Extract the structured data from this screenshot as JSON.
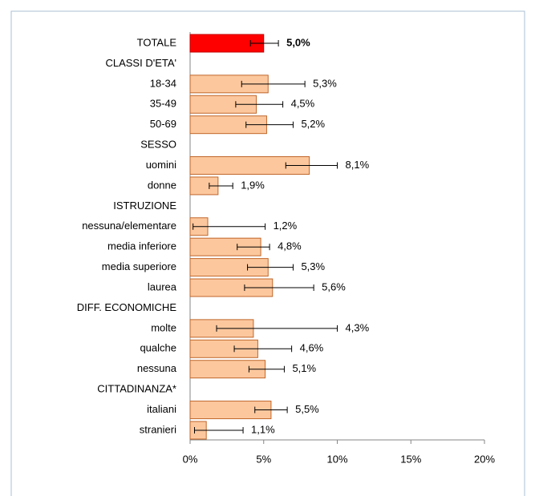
{
  "chart_data": {
    "type": "bar",
    "orientation": "horizontal",
    "categories": [
      "TOTALE",
      "CLASSI D'ETA'",
      "18-34",
      "35-49",
      "50-69",
      "SESSO",
      "uomini",
      "donne",
      "ISTRUZIONE",
      "nessuna/elementare",
      "media inferiore",
      "media superiore",
      "laurea",
      "DIFF. ECONOMICHE",
      "molte",
      "qualche",
      "nessuna",
      "CITTADINANZA*",
      "italiani",
      "stranieri"
    ],
    "values": [
      5.0,
      null,
      5.3,
      4.5,
      5.2,
      null,
      8.1,
      1.9,
      null,
      1.2,
      4.8,
      5.3,
      5.6,
      null,
      4.3,
      4.6,
      5.1,
      null,
      5.5,
      1.1
    ],
    "value_labels": [
      "5,0%",
      null,
      "5,3%",
      "4,5%",
      "5,2%",
      null,
      "8,1%",
      "1,9%",
      null,
      "1,2%",
      "4,8%",
      "5,3%",
      "5,6%",
      null,
      "4,3%",
      "4,6%",
      "5,1%",
      null,
      "5,5%",
      "1,1%"
    ],
    "errors_low": [
      4.1,
      null,
      3.5,
      3.1,
      3.8,
      null,
      6.5,
      1.3,
      null,
      0.2,
      3.2,
      3.9,
      3.7,
      null,
      1.8,
      3.0,
      4.0,
      null,
      4.4,
      0.3
    ],
    "errors_high": [
      6.0,
      null,
      7.8,
      6.3,
      7.0,
      null,
      10.0,
      2.9,
      null,
      5.1,
      5.4,
      7.0,
      8.4,
      null,
      10.0,
      6.9,
      6.4,
      null,
      6.6,
      3.6
    ],
    "colors": [
      "#ff0000",
      null,
      "#fcc79d",
      "#fcc79d",
      "#fcc79d",
      null,
      "#fcc79d",
      "#fcc79d",
      null,
      "#fcc79d",
      "#fcc79d",
      "#fcc79d",
      "#fcc79d",
      null,
      "#fcc79d",
      "#fcc79d",
      "#fcc79d",
      null,
      "#fcc79d",
      "#fcc79d"
    ],
    "xlim": [
      0,
      20
    ],
    "xticks": [
      {
        "value": 0,
        "label": "0%"
      },
      {
        "value": 5,
        "label": "5%"
      },
      {
        "value": 10,
        "label": "10%"
      },
      {
        "value": 15,
        "label": "15%"
      },
      {
        "value": 20,
        "label": "20%"
      }
    ]
  }
}
